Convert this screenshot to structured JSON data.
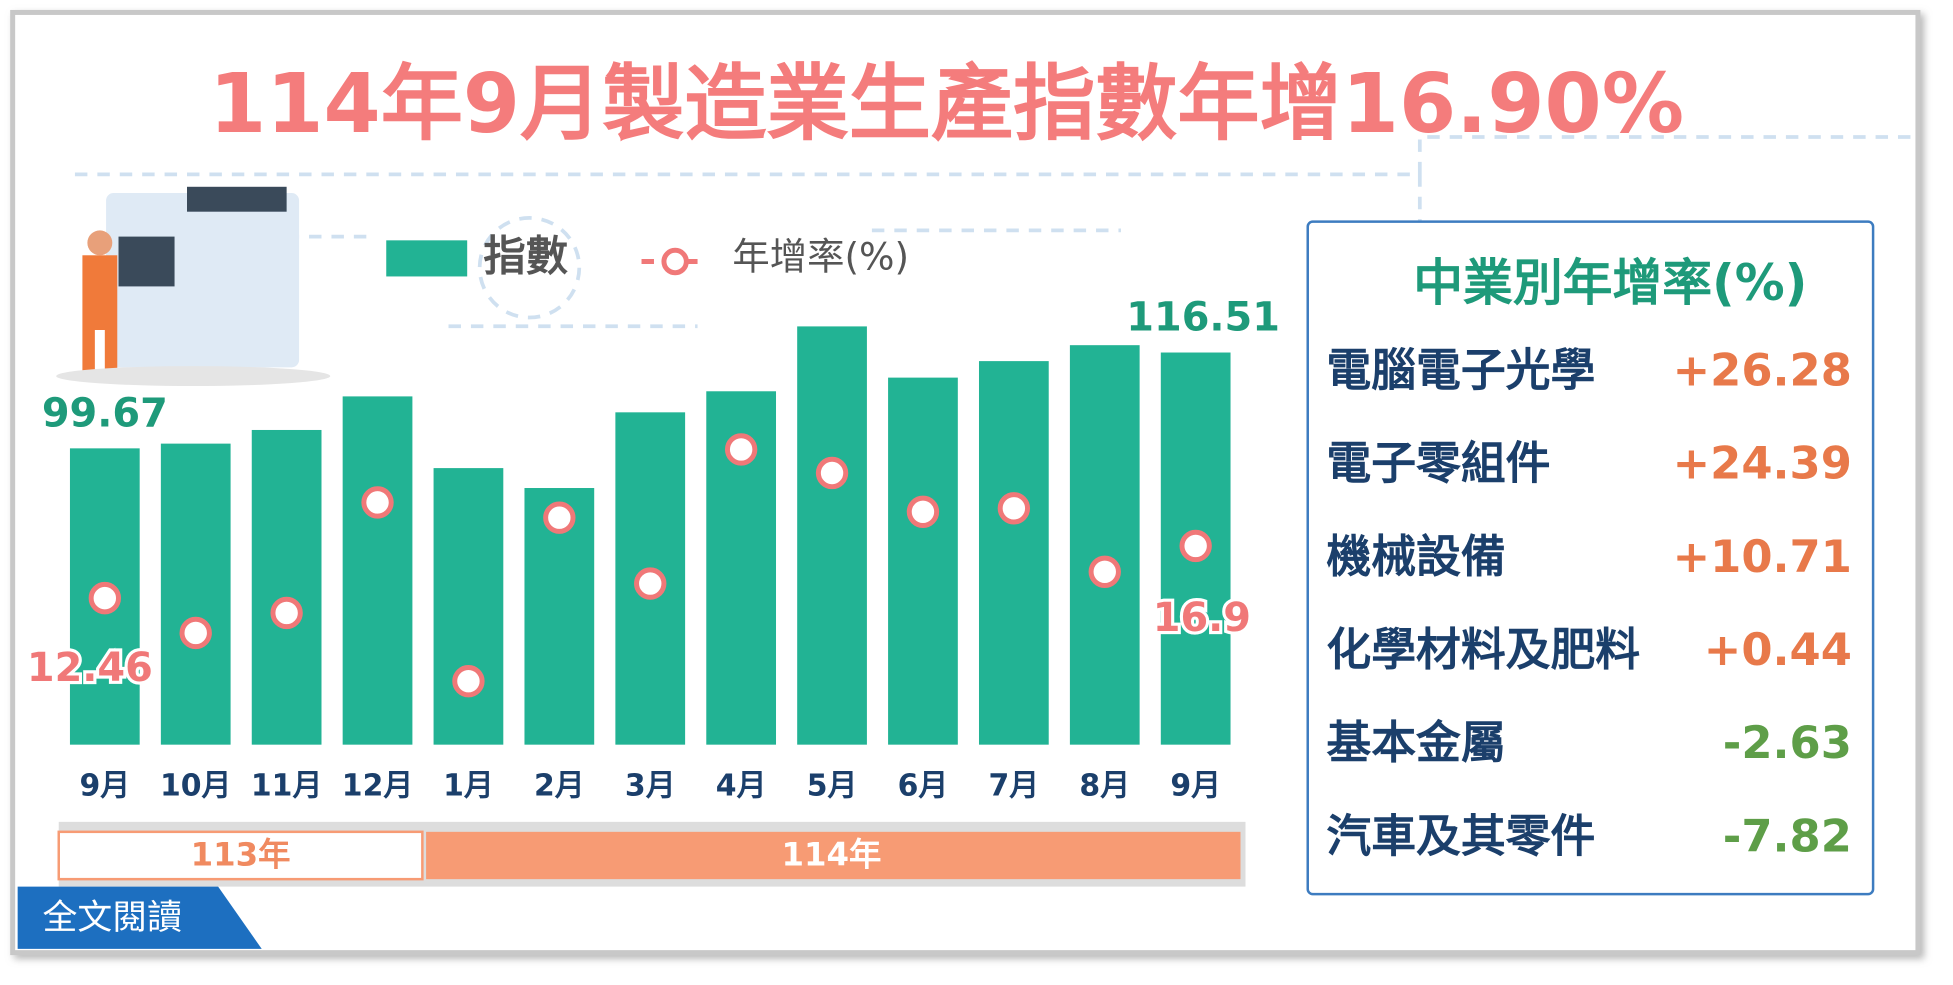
{
  "title": "114年9月製造業生產指數年增16.90%",
  "chart_data": {
    "type": "bar-line",
    "categories": [
      "9月",
      "10月",
      "11月",
      "12月",
      "1月",
      "2月",
      "3月",
      "4月",
      "5月",
      "6月",
      "7月",
      "8月",
      "9月"
    ],
    "series": [
      {
        "name": "指數",
        "type": "bar",
        "color": "#22b394",
        "values": [
          99.67,
          100.5,
          102.9,
          108.8,
          96.2,
          92.7,
          106.0,
          109.7,
          121.1,
          112.1,
          115.0,
          117.8,
          116.51
        ]
      },
      {
        "name": "年增率(%)",
        "type": "line",
        "axis": "y2",
        "color": "#f07878",
        "values": [
          12.46,
          9.5,
          11.2,
          20.6,
          5.4,
          19.3,
          13.7,
          25.1,
          23.1,
          19.8,
          20.1,
          14.7,
          16.9
        ]
      }
    ],
    "ylim": [
      47.6,
      122
    ],
    "y2lim": [
      0,
      36
    ],
    "periods": [
      {
        "label": "113年",
        "count": 4
      },
      {
        "label": "114年",
        "count": 9
      }
    ]
  },
  "panel": {
    "title": "中業別年增率(%)",
    "rows": [
      {
        "name": "電腦電子光學",
        "value": 26.28,
        "value_label": "+26.28"
      },
      {
        "name": "電子零組件",
        "value": 24.39,
        "value_label": "+24.39"
      },
      {
        "name": "機械設備",
        "value": 10.71,
        "value_label": "+10.71"
      },
      {
        "name": "化學材料及肥料",
        "value": 0.44,
        "value_label": "+0.44"
      },
      {
        "name": "基本金屬",
        "value": -2.63,
        "value_label": "-2.63"
      },
      {
        "name": "汽車及其零件",
        "value": -7.82,
        "value_label": "-7.82"
      }
    ]
  },
  "button": "全文閱讀"
}
